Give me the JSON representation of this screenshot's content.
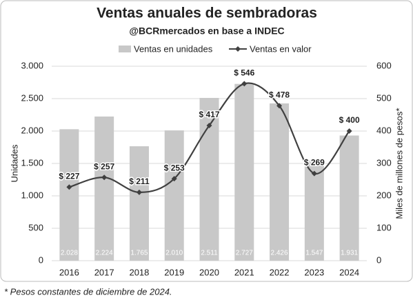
{
  "chart_data": {
    "type": "combo",
    "title": "Ventas anuales de sembradoras",
    "subtitle": "@BCRmercados en base a INDEC",
    "y_label": "Unidades",
    "y2_label": "Miles de millones de pesos*",
    "footnote": "* Pesos constantes de diciembre de 2024.",
    "categories": [
      "2016",
      "2017",
      "2018",
      "2019",
      "2020",
      "2021",
      "2022",
      "2023",
      "2024"
    ],
    "series": [
      {
        "name": "Ventas en unidades",
        "type": "bar",
        "color": "#c8c8c8",
        "values": [
          2028,
          2224,
          1765,
          2010,
          2511,
          2727,
          2426,
          1547,
          1931
        ],
        "value_labels": [
          "2.028",
          "2.224",
          "1.765",
          "2.010",
          "2.511",
          "2.727",
          "2.426",
          "1.547",
          "1.931"
        ]
      },
      {
        "name": "Ventas en valor",
        "type": "line",
        "axis": "y2",
        "color": "#404040",
        "values": [
          227,
          257,
          211,
          253,
          417,
          546,
          478,
          269,
          400
        ],
        "value_labels": [
          "$ 227",
          "$ 257",
          "$ 211",
          "$ 253",
          "$ 417",
          "$ 546",
          "$ 478",
          "$ 269",
          "$ 400"
        ]
      }
    ],
    "ylim": [
      0,
      3000
    ],
    "yticks": [
      0,
      500,
      {
        "value": 1000,
        "label": "1.000"
      },
      {
        "value": 1500,
        "label": "1.500"
      },
      {
        "value": 2000,
        "label": "2.000"
      },
      {
        "value": 2500,
        "label": "2.500"
      },
      {
        "value": 3000,
        "label": "3.000"
      }
    ],
    "y2lim": [
      0,
      600
    ],
    "y2ticks": [
      0,
      100,
      200,
      300,
      400,
      500,
      600
    ],
    "grid": true,
    "legend": "top"
  }
}
